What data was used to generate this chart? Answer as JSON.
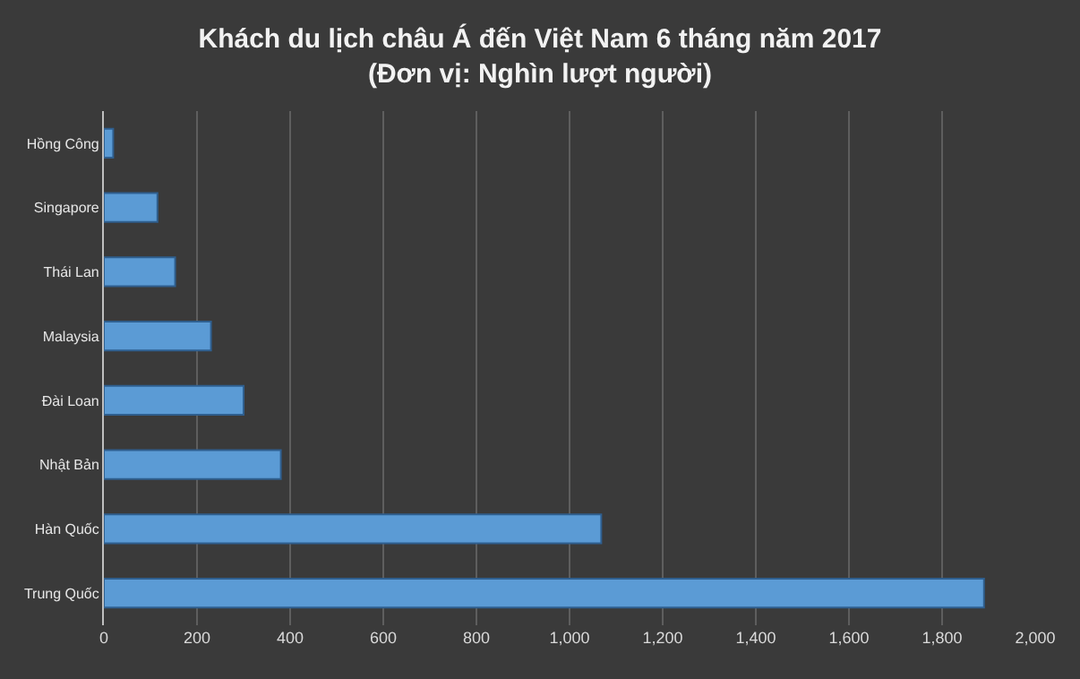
{
  "chart_data": {
    "type": "bar",
    "orientation": "horizontal",
    "title": "Khách du lịch châu Á đến Việt Nam 6 tháng năm 2017",
    "subtitle": "(Đơn vị: Nghìn lượt người)",
    "categories": [
      "Hồng Công",
      "Singapore",
      "Thái Lan",
      "Malaysia",
      "Đài Loan",
      "Nhật Bản",
      "Hàn Quốc",
      "Trung Quốc"
    ],
    "values": [
      20,
      115,
      153,
      230,
      300,
      380,
      1068,
      1890
    ],
    "color": "#5b9bd5",
    "xlim": [
      0,
      2000
    ],
    "xticks": [
      0,
      {
        "value": 200,
        "label": "200"
      },
      {
        "value": 400,
        "label": "400"
      },
      {
        "value": 600,
        "label": "600"
      },
      {
        "value": 800,
        "label": "800"
      },
      {
        "value": 1000,
        "label": "1,000"
      },
      {
        "value": 1200,
        "label": "1,200"
      },
      {
        "value": 1400,
        "label": "1,400"
      },
      {
        "value": 1600,
        "label": "1,600"
      },
      {
        "value": 1800,
        "label": "1,800"
      },
      {
        "value": 2000,
        "label": "2,000"
      }
    ],
    "grid": "x"
  }
}
